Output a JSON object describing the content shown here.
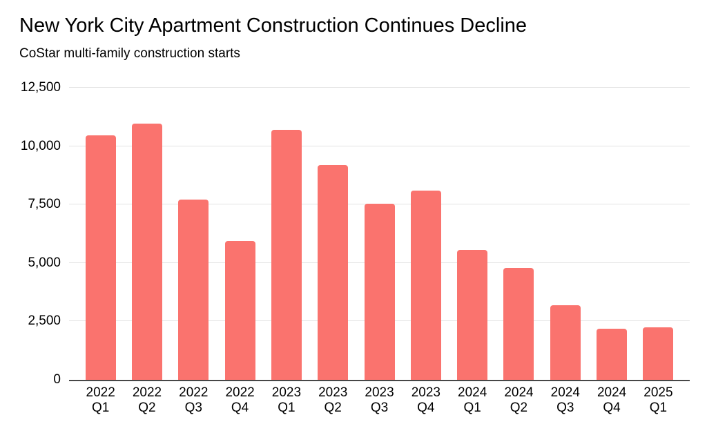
{
  "chart_data": {
    "type": "bar",
    "title": "New York City Apartment Construction Continues Decline",
    "subtitle": "CoStar multi-family construction starts",
    "categories": [
      "2022 Q1",
      "2022 Q2",
      "2022 Q3",
      "2022 Q4",
      "2023 Q1",
      "2023 Q2",
      "2023 Q3",
      "2023 Q4",
      "2024 Q1",
      "2024 Q2",
      "2024 Q3",
      "2024 Q4",
      "2025 Q1"
    ],
    "values": [
      10450,
      10950,
      7700,
      5950,
      10700,
      9200,
      7550,
      8100,
      5550,
      4800,
      3200,
      2200,
      2250
    ],
    "xlabel": "",
    "ylabel": "",
    "ylim": [
      0,
      12500
    ],
    "ytick_interval": 2500,
    "ytick_labels": [
      "0",
      "2,500",
      "5,000",
      "7,500",
      "10,000",
      "12,500"
    ],
    "grid": true,
    "legend_position": "none",
    "bar_color": "#FA736E"
  },
  "colors": {
    "bar": "#FA736E",
    "gridline": "#E2E2E2",
    "axis_line": "#474747",
    "text": "#000000",
    "background": "#FFFFFF"
  }
}
